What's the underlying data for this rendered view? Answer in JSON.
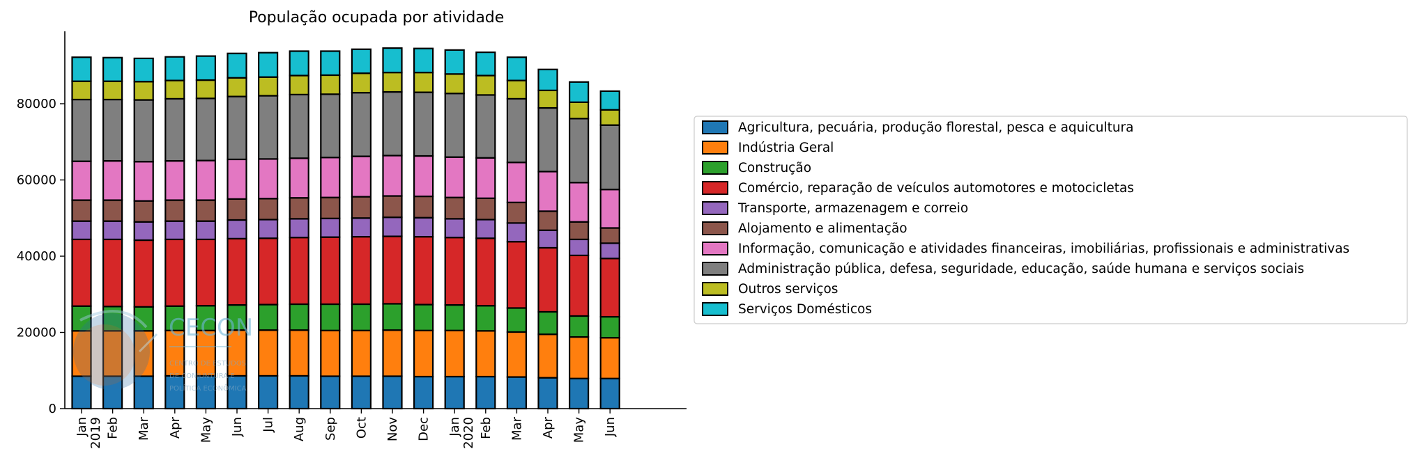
{
  "chart_data": {
    "type": "bar",
    "stacked": true,
    "title": "População ocupada por atividade",
    "xlabel": "",
    "ylabel": "",
    "ylim": [
      0,
      99000
    ],
    "yticks": [
      0,
      20000,
      40000,
      60000,
      80000
    ],
    "ytick_labels": [
      "0",
      "20000",
      "40000",
      "60000",
      "80000"
    ],
    "legend_position": "center-right",
    "grid": false,
    "categories": [
      "2019-01",
      "2019-02",
      "2019-03",
      "2019-04",
      "2019-05",
      "2019-06",
      "2019-07",
      "2019-08",
      "2019-09",
      "2019-10",
      "2019-11",
      "2019-12",
      "2020-01",
      "2020-02",
      "2020-03",
      "2020-04",
      "2020-05",
      "2020-06"
    ],
    "tick_labels": [
      {
        "month": "Jan",
        "year": "2019"
      },
      {
        "month": "Feb",
        "year": ""
      },
      {
        "month": "Mar",
        "year": ""
      },
      {
        "month": "Apr",
        "year": ""
      },
      {
        "month": "May",
        "year": ""
      },
      {
        "month": "Jun",
        "year": ""
      },
      {
        "month": "Jul",
        "year": ""
      },
      {
        "month": "Aug",
        "year": ""
      },
      {
        "month": "Sep",
        "year": ""
      },
      {
        "month": "Oct",
        "year": ""
      },
      {
        "month": "Nov",
        "year": ""
      },
      {
        "month": "Dec",
        "year": ""
      },
      {
        "month": "Jan",
        "year": "2020"
      },
      {
        "month": "Feb",
        "year": ""
      },
      {
        "month": "Mar",
        "year": ""
      },
      {
        "month": "Apr",
        "year": ""
      },
      {
        "month": "May",
        "year": ""
      },
      {
        "month": "Jun",
        "year": ""
      }
    ],
    "series": [
      {
        "name": "Agricultura, pecuária, produção florestal, pesca e aquicultura",
        "color": "#1f77b4",
        "values": [
          8500,
          8500,
          8500,
          8600,
          8600,
          8600,
          8600,
          8600,
          8500,
          8500,
          8500,
          8400,
          8400,
          8400,
          8300,
          8100,
          7900,
          7900
        ]
      },
      {
        "name": "Indústria Geral",
        "color": "#ff7f0e",
        "values": [
          11900,
          11900,
          11900,
          11900,
          11900,
          12000,
          12000,
          12000,
          12000,
          12000,
          12100,
          12100,
          12100,
          12000,
          11800,
          11400,
          10900,
          10700
        ]
      },
      {
        "name": "Construção",
        "color": "#2ca02c",
        "values": [
          6500,
          6400,
          6300,
          6400,
          6500,
          6600,
          6700,
          6800,
          6900,
          6900,
          6900,
          6800,
          6700,
          6600,
          6300,
          5900,
          5500,
          5500
        ]
      },
      {
        "name": "Comércio, reparação de veículos automotores e motocicletas",
        "color": "#d62728",
        "values": [
          17500,
          17600,
          17500,
          17500,
          17400,
          17400,
          17400,
          17500,
          17600,
          17700,
          17700,
          17800,
          17700,
          17700,
          17400,
          16800,
          15900,
          15300
        ]
      },
      {
        "name": "Transporte, armazenagem e correio",
        "color": "#9467bd",
        "values": [
          4800,
          4800,
          4800,
          4800,
          4800,
          4900,
          4900,
          4900,
          4900,
          4900,
          5000,
          5000,
          4900,
          4900,
          4900,
          4600,
          4200,
          4000
        ]
      },
      {
        "name": "Alojamento e alimentação",
        "color": "#8c564b",
        "values": [
          5500,
          5500,
          5500,
          5500,
          5500,
          5500,
          5500,
          5500,
          5500,
          5600,
          5600,
          5600,
          5600,
          5600,
          5400,
          5000,
          4600,
          4000
        ]
      },
      {
        "name": "Informação, comunicação e atividades financeiras, imobiliárias, profissionais e administrativas",
        "color": "#e377c2",
        "values": [
          10200,
          10300,
          10300,
          10300,
          10400,
          10400,
          10400,
          10400,
          10500,
          10600,
          10600,
          10600,
          10600,
          10600,
          10500,
          10400,
          10300,
          10100
        ]
      },
      {
        "name": "Administração pública, defesa, seguridade, educação, saúde humana e serviços sociais",
        "color": "#7f7f7f",
        "values": [
          16200,
          16100,
          16200,
          16300,
          16300,
          16500,
          16600,
          16700,
          16600,
          16700,
          16700,
          16700,
          16700,
          16500,
          16700,
          16700,
          16800,
          16900
        ]
      },
      {
        "name": "Outros serviços",
        "color": "#bcbd22",
        "values": [
          4800,
          4800,
          4800,
          4800,
          4800,
          4900,
          4900,
          5000,
          5000,
          5100,
          5100,
          5200,
          5100,
          5100,
          4800,
          4600,
          4300,
          4000
        ]
      },
      {
        "name": "Serviços Domésticos",
        "color": "#17becf",
        "values": [
          6300,
          6200,
          6100,
          6200,
          6300,
          6400,
          6400,
          6400,
          6300,
          6300,
          6400,
          6300,
          6300,
          6100,
          6100,
          5500,
          5300,
          4900
        ]
      }
    ]
  },
  "watermark": {
    "name": "CECON",
    "tagline_lines": [
      "CENTRO DE ESTUDOS",
      "DE CONJUNTURA E",
      "POLÍTICA ECONÔMICA"
    ]
  }
}
